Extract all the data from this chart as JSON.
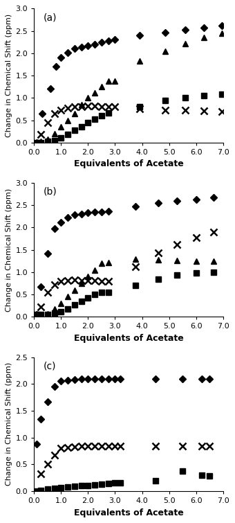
{
  "panel_a": {
    "label": "(a)",
    "ylim": [
      0,
      3.0
    ],
    "yticks": [
      0.0,
      0.5,
      1.0,
      1.5,
      2.0,
      2.5,
      3.0
    ],
    "xticks": [
      0.0,
      1.0,
      2.0,
      3.0,
      4.0,
      5.0,
      6.0,
      7.0
    ],
    "diamond": {
      "x": [
        0.1,
        0.3,
        0.6,
        0.8,
        1.0,
        1.25,
        1.5,
        1.75,
        2.0,
        2.25,
        2.5,
        2.75,
        3.0,
        3.9,
        4.85,
        5.6,
        6.3,
        6.95
      ],
      "y": [
        0.0,
        0.65,
        1.2,
        1.7,
        1.9,
        2.02,
        2.1,
        2.14,
        2.17,
        2.2,
        2.25,
        2.28,
        2.3,
        2.4,
        2.47,
        2.52,
        2.57,
        2.62
      ]
    },
    "triangle": {
      "x": [
        0.1,
        0.25,
        0.5,
        0.75,
        1.0,
        1.25,
        1.5,
        1.75,
        2.0,
        2.25,
        2.5,
        2.75,
        3.0,
        3.9,
        4.85,
        5.6,
        6.3,
        6.95
      ],
      "y": [
        0.0,
        0.02,
        0.08,
        0.2,
        0.35,
        0.5,
        0.65,
        0.85,
        1.0,
        1.12,
        1.25,
        1.37,
        1.38,
        1.82,
        2.05,
        2.22,
        2.35,
        2.45
      ]
    },
    "square": {
      "x": [
        0.1,
        0.25,
        0.5,
        0.75,
        1.0,
        1.25,
        1.5,
        1.75,
        2.0,
        2.25,
        2.5,
        2.75,
        3.9,
        4.85,
        5.6,
        6.3,
        6.95
      ],
      "y": [
        0.0,
        0.0,
        0.02,
        0.05,
        0.1,
        0.18,
        0.27,
        0.36,
        0.45,
        0.53,
        0.6,
        0.67,
        0.8,
        0.95,
        1.0,
        1.05,
        1.08
      ]
    },
    "cross": {
      "x": [
        0.25,
        0.5,
        0.75,
        1.0,
        1.25,
        1.5,
        1.75,
        2.0,
        2.25,
        2.5,
        2.75,
        3.0,
        3.9,
        4.85,
        5.6,
        6.3,
        6.95
      ],
      "y": [
        0.18,
        0.45,
        0.65,
        0.72,
        0.77,
        0.8,
        0.81,
        0.82,
        0.82,
        0.81,
        0.8,
        0.8,
        0.75,
        0.73,
        0.72,
        0.71,
        0.7
      ]
    }
  },
  "panel_b": {
    "label": "(b)",
    "ylim": [
      0,
      3.0
    ],
    "yticks": [
      0.0,
      0.5,
      1.0,
      1.5,
      2.0,
      2.5,
      3.0
    ],
    "xticks": [
      0.0,
      1.0,
      2.0,
      3.0,
      4.0,
      5.0,
      6.0,
      7.0
    ],
    "diamond": {
      "x": [
        0.1,
        0.25,
        0.5,
        0.75,
        1.0,
        1.25,
        1.5,
        1.75,
        2.0,
        2.25,
        2.5,
        2.75,
        3.75,
        4.6,
        5.3,
        6.0,
        6.65
      ],
      "y": [
        0.05,
        0.68,
        1.42,
        1.98,
        2.12,
        2.22,
        2.28,
        2.3,
        2.33,
        2.35,
        2.35,
        2.37,
        2.47,
        2.55,
        2.6,
        2.62,
        2.67
      ]
    },
    "triangle": {
      "x": [
        0.1,
        0.25,
        0.5,
        0.75,
        1.0,
        1.25,
        1.5,
        1.75,
        2.0,
        2.25,
        2.5,
        2.75,
        3.75,
        4.6,
        5.3,
        6.0,
        6.65
      ],
      "y": [
        0.0,
        0.02,
        0.07,
        0.18,
        0.3,
        0.45,
        0.6,
        0.75,
        0.9,
        1.05,
        1.2,
        1.22,
        1.3,
        1.28,
        1.27,
        1.25,
        1.24
      ]
    },
    "square": {
      "x": [
        0.1,
        0.25,
        0.5,
        0.75,
        1.0,
        1.25,
        1.5,
        1.75,
        2.0,
        2.25,
        2.5,
        2.75,
        3.75,
        4.6,
        5.3,
        6.0,
        6.65
      ],
      "y": [
        0.05,
        0.05,
        0.05,
        0.08,
        0.12,
        0.18,
        0.27,
        0.35,
        0.43,
        0.5,
        0.55,
        0.55,
        0.7,
        0.85,
        0.93,
        0.98,
        1.0
      ]
    },
    "cross": {
      "x": [
        0.25,
        0.5,
        0.75,
        1.0,
        1.25,
        1.5,
        1.75,
        2.0,
        2.25,
        2.5,
        2.75,
        3.75,
        4.6,
        5.3,
        6.0,
        6.65
      ],
      "y": [
        0.22,
        0.55,
        0.72,
        0.8,
        0.82,
        0.83,
        0.82,
        0.82,
        0.81,
        0.8,
        0.8,
        1.13,
        1.44,
        1.62,
        1.78,
        1.9
      ]
    }
  },
  "panel_c": {
    "label": "(c)",
    "ylim": [
      0,
      2.5
    ],
    "yticks": [
      0.0,
      0.5,
      1.0,
      1.5,
      2.0,
      2.5
    ],
    "xticks": [
      0.0,
      1.0,
      2.0,
      3.0,
      4.0,
      5.0,
      6.0,
      7.0
    ],
    "diamond": {
      "x": [
        0.1,
        0.25,
        0.5,
        0.75,
        1.0,
        1.25,
        1.5,
        1.75,
        2.0,
        2.25,
        2.5,
        2.75,
        3.0,
        3.2,
        4.5,
        5.5,
        6.2,
        6.5
      ],
      "y": [
        0.88,
        1.35,
        1.67,
        1.95,
        2.05,
        2.07,
        2.08,
        2.09,
        2.09,
        2.1,
        2.1,
        2.1,
        2.1,
        2.1,
        2.1,
        2.1,
        2.1,
        2.1
      ]
    },
    "square": {
      "x": [
        0.1,
        0.25,
        0.5,
        0.75,
        1.0,
        1.25,
        1.5,
        1.75,
        2.0,
        2.25,
        2.5,
        2.75,
        3.0,
        3.2,
        4.5,
        5.5,
        6.2,
        6.5
      ],
      "y": [
        0.0,
        0.02,
        0.04,
        0.05,
        0.07,
        0.08,
        0.09,
        0.1,
        0.11,
        0.12,
        0.13,
        0.14,
        0.15,
        0.16,
        0.2,
        0.37,
        0.3,
        0.28
      ]
    },
    "cross": {
      "x": [
        0.25,
        0.5,
        0.75,
        1.0,
        1.25,
        1.5,
        1.75,
        2.0,
        2.25,
        2.5,
        2.75,
        3.0,
        3.2,
        4.5,
        5.5,
        6.2,
        6.5
      ],
      "y": [
        0.32,
        0.5,
        0.67,
        0.8,
        0.82,
        0.83,
        0.84,
        0.84,
        0.84,
        0.84,
        0.84,
        0.84,
        0.84,
        0.84,
        0.84,
        0.84,
        0.84
      ]
    }
  },
  "xlabel": "Equivalents of Acetate",
  "ylabel": "Change in Chemical Shift (ppm)",
  "marker_size": 5.5
}
